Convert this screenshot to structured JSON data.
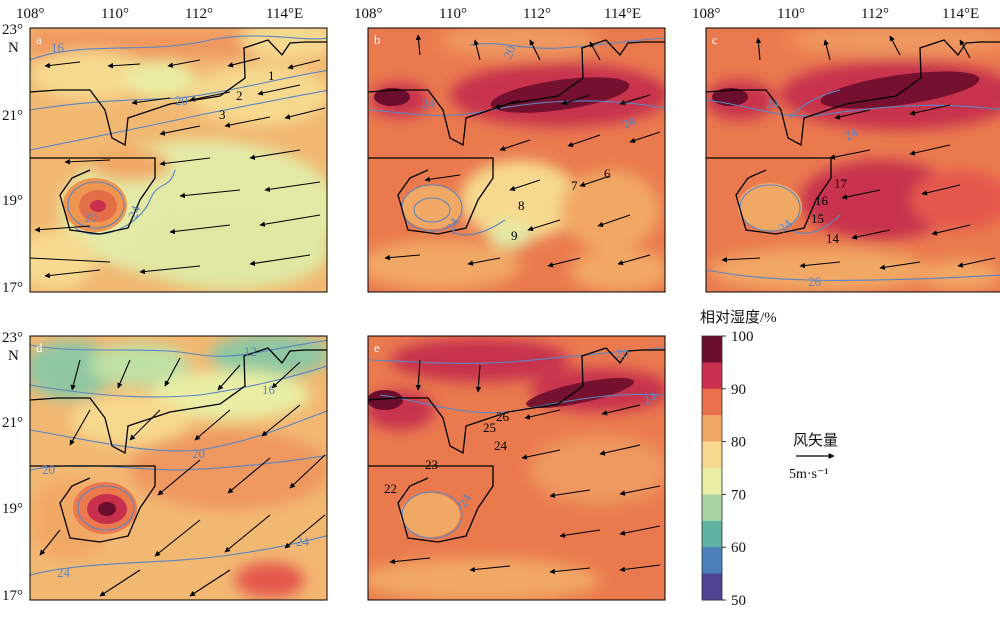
{
  "figure": {
    "axis_labels": {
      "lon_ticks": [
        "108°",
        "110°",
        "112°",
        "114°E"
      ],
      "lat_ticks": [
        "23°",
        "21°",
        "19°",
        "17°"
      ],
      "lat_unit": "N"
    },
    "panels": [
      {
        "id": "a",
        "label": "a",
        "contours": [
          {
            "value": "16"
          },
          {
            "value": "20"
          },
          {
            "value": "20"
          },
          {
            "value": "24"
          }
        ],
        "track_points": [
          "1",
          "2",
          "3"
        ]
      },
      {
        "id": "b",
        "label": "b",
        "contours": [
          {
            "value": "20"
          },
          {
            "value": "24"
          },
          {
            "value": "24"
          },
          {
            "value": "24"
          }
        ],
        "track_points": [
          "6",
          "7",
          "8",
          "9"
        ]
      },
      {
        "id": "c",
        "label": "c",
        "contours": [
          {
            "value": "24"
          },
          {
            "value": "24"
          },
          {
            "value": "24"
          },
          {
            "value": "26"
          }
        ],
        "track_points": [
          "17",
          "16",
          "15",
          "14"
        ]
      },
      {
        "id": "d",
        "label": "d",
        "contours": [
          {
            "value": "12"
          },
          {
            "value": "16"
          },
          {
            "value": "20"
          },
          {
            "value": "20"
          },
          {
            "value": "24"
          },
          {
            "value": "24"
          }
        ],
        "track_points": []
      },
      {
        "id": "e",
        "label": "e",
        "contours": [
          {
            "value": "20"
          },
          {
            "value": "24"
          },
          {
            "value": "24"
          }
        ],
        "track_points": [
          "26",
          "25",
          "24",
          "23",
          "22"
        ]
      }
    ]
  },
  "legend": {
    "title": "相对湿度/%",
    "ticks": [
      "100",
      "90",
      "80",
      "70",
      "60",
      "50"
    ],
    "colors": [
      "#6b0d2c",
      "#c8304e",
      "#ea6f4b",
      "#f2a865",
      "#f6d98f",
      "#e9eea4",
      "#a8d5a3",
      "#5fb3a3",
      "#4a7fbc",
      "#4d4593"
    ]
  },
  "wind_key": {
    "title": "风矢量",
    "unit": "5m·s⁻¹"
  },
  "colors": {
    "contour": "#5a86c4",
    "coast": "#000000",
    "arrow": "#000000"
  }
}
